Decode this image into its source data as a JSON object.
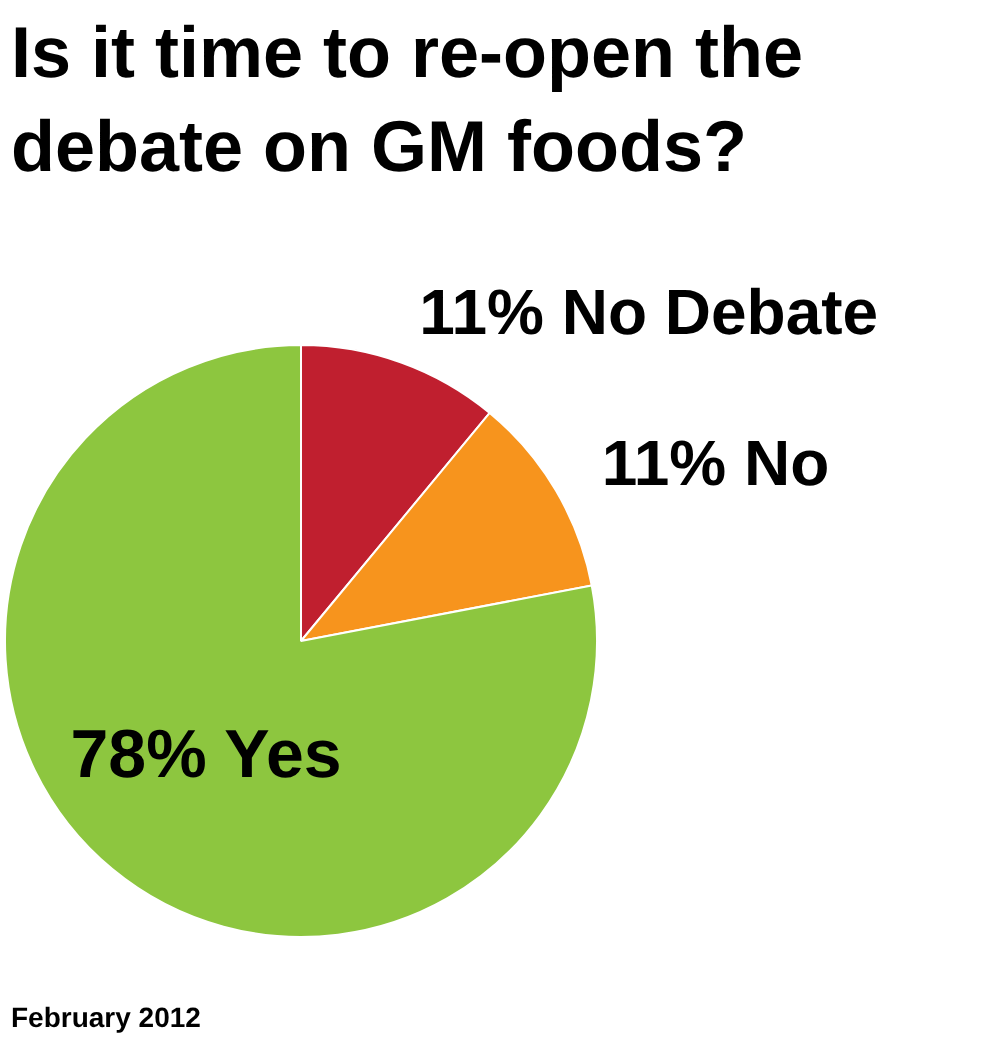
{
  "chart_data": {
    "type": "pie",
    "title": "Is it time to re-open the debate on GM foods?",
    "categories": [
      "No Debate",
      "No",
      "Yes"
    ],
    "values": [
      11,
      11,
      78
    ],
    "value_labels": [
      "11%",
      "11%",
      "78%"
    ],
    "colors": [
      "#c01f2f",
      "#f7941d",
      "#8dc63f"
    ],
    "annotations": [
      "February 2012"
    ]
  }
}
